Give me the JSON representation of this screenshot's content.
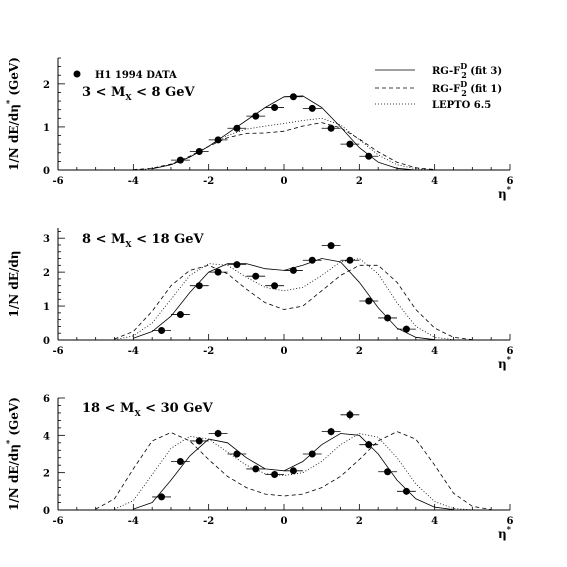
{
  "legend": {
    "data_label": "H1 1994 DATA",
    "fit3": {
      "main": "RG-F",
      "sub": "2",
      "sup": "D",
      "rest": " (fit 3)"
    },
    "fit1": {
      "main": "RG-F",
      "sub": "2",
      "sup": "D",
      "rest": " (fit 1)"
    },
    "lepto": "LEPTO 6.5"
  },
  "chart_data": [
    {
      "type": "scatter",
      "panel_label": {
        "pre": "3 < M",
        "sub": "X",
        "post": " < 8 GeV"
      },
      "ylabel": {
        "pre": "1/N dE/dη",
        "sup": "*",
        "post": "  (GeV)"
      },
      "xlabel": {
        "base": "η",
        "sup": "*"
      },
      "xlim": [
        -6,
        6
      ],
      "ylim": [
        0,
        2.6
      ],
      "xticks": [
        -6,
        -4,
        -2,
        0,
        2,
        4,
        6
      ],
      "yticks": [
        0,
        1,
        2
      ],
      "points": {
        "x": [
          -2.75,
          -2.25,
          -1.75,
          -1.25,
          -0.75,
          -0.25,
          0.25,
          0.75,
          1.25,
          1.75,
          2.25
        ],
        "y": [
          0.23,
          0.43,
          0.7,
          0.97,
          1.25,
          1.45,
          1.7,
          1.43,
          0.97,
          0.6,
          0.32
        ],
        "yerr": [
          0.04,
          0.04,
          0.05,
          0.06,
          0.06,
          0.07,
          0.07,
          0.07,
          0.06,
          0.05,
          0.04
        ]
      },
      "series": [
        {
          "style": "solid",
          "x": [
            -3.5,
            -3.0,
            -2.5,
            -2.0,
            -1.5,
            -1.0,
            -0.5,
            0.0,
            0.5,
            1.0,
            1.5,
            2.0,
            2.5,
            3.0,
            3.5
          ],
          "y": [
            0.03,
            0.12,
            0.3,
            0.55,
            0.85,
            1.15,
            1.45,
            1.7,
            1.72,
            1.45,
            1.0,
            0.52,
            0.18,
            0.04,
            0.0
          ]
        },
        {
          "style": "dashed",
          "x": [
            -4.0,
            -3.5,
            -3.0,
            -2.5,
            -2.0,
            -1.5,
            -1.0,
            -0.5,
            0.0,
            0.5,
            1.0,
            1.5,
            2.0,
            2.5,
            3.0,
            3.5,
            4.0
          ],
          "y": [
            0.01,
            0.04,
            0.14,
            0.32,
            0.55,
            0.75,
            0.85,
            0.86,
            0.9,
            1.02,
            1.1,
            0.98,
            0.72,
            0.42,
            0.18,
            0.05,
            0.01
          ]
        },
        {
          "style": "dotted",
          "x": [
            -4.0,
            -3.5,
            -3.0,
            -2.5,
            -2.0,
            -1.5,
            -1.0,
            -0.5,
            0.0,
            0.5,
            1.0,
            1.5,
            2.0,
            2.5,
            3.0,
            3.5,
            4.0
          ],
          "y": [
            0.0,
            0.03,
            0.12,
            0.3,
            0.55,
            0.8,
            0.95,
            1.02,
            1.08,
            1.15,
            1.2,
            1.05,
            0.7,
            0.35,
            0.12,
            0.03,
            0.0
          ]
        }
      ]
    },
    {
      "type": "scatter",
      "panel_label": {
        "pre": "8  < M",
        "sub": "X",
        "post": " < 18 GeV"
      },
      "ylabel": {
        "pre": "1/N dE/dη",
        "sup": "",
        "post": ""
      },
      "xlabel": {
        "base": "η",
        "sup": "*"
      },
      "xlim": [
        -6,
        6
      ],
      "ylim": [
        0,
        3.3
      ],
      "xticks": [
        -6,
        -4,
        -2,
        0,
        2,
        4,
        6
      ],
      "yticks": [
        0,
        1,
        2,
        3
      ],
      "points": {
        "x": [
          -3.25,
          -2.75,
          -2.25,
          -1.75,
          -1.25,
          -0.75,
          -0.25,
          0.25,
          0.75,
          1.25,
          1.75,
          2.25,
          2.75,
          3.25
        ],
        "y": [
          0.28,
          0.75,
          1.6,
          2.0,
          2.22,
          1.88,
          1.6,
          2.05,
          2.35,
          2.78,
          2.35,
          1.15,
          0.65,
          0.32
        ],
        "yerr": [
          0.05,
          0.06,
          0.08,
          0.08,
          0.08,
          0.08,
          0.08,
          0.08,
          0.09,
          0.1,
          0.09,
          0.07,
          0.06,
          0.05
        ]
      },
      "series": [
        {
          "style": "solid",
          "x": [
            -4.0,
            -3.5,
            -3.0,
            -2.5,
            -2.0,
            -1.5,
            -1.0,
            -0.5,
            0.0,
            0.5,
            1.0,
            1.5,
            2.0,
            2.5,
            3.0,
            3.5,
            4.0
          ],
          "y": [
            0.05,
            0.25,
            0.7,
            1.4,
            2.0,
            2.25,
            2.25,
            2.1,
            2.05,
            2.2,
            2.4,
            2.3,
            1.7,
            0.95,
            0.35,
            0.08,
            0.01
          ]
        },
        {
          "style": "dashed",
          "x": [
            -4.5,
            -4.0,
            -3.5,
            -3.0,
            -2.5,
            -2.0,
            -1.5,
            -1.0,
            -0.5,
            0.0,
            0.5,
            1.0,
            1.5,
            2.0,
            2.5,
            3.0,
            3.5,
            4.0,
            4.5,
            5.0
          ],
          "y": [
            0.03,
            0.25,
            0.85,
            1.6,
            2.05,
            2.2,
            1.95,
            1.5,
            1.1,
            0.9,
            1.0,
            1.45,
            1.9,
            2.2,
            2.2,
            1.7,
            0.9,
            0.35,
            0.08,
            0.01
          ]
        },
        {
          "style": "dotted",
          "x": [
            -4.5,
            -4.0,
            -3.5,
            -3.0,
            -2.5,
            -2.0,
            -1.5,
            -1.0,
            -0.5,
            0.0,
            0.5,
            1.0,
            1.5,
            2.0,
            2.5,
            3.0,
            3.5,
            4.0,
            4.5
          ],
          "y": [
            0.01,
            0.12,
            0.5,
            1.2,
            1.9,
            2.25,
            2.2,
            1.85,
            1.55,
            1.45,
            1.55,
            1.9,
            2.3,
            2.4,
            1.95,
            1.1,
            0.4,
            0.08,
            0.01
          ]
        }
      ]
    },
    {
      "type": "scatter",
      "panel_label": {
        "pre": "18  < M",
        "sub": "X",
        "post": " < 30 GeV"
      },
      "ylabel": {
        "pre": "1/N dE/dη",
        "sup": "*",
        "post": "  (GeV)"
      },
      "xlabel": {
        "base": "η",
        "sup": "*"
      },
      "xlim": [
        -6,
        6
      ],
      "ylim": [
        0,
        6
      ],
      "xticks": [
        -6,
        -4,
        -2,
        0,
        2,
        4,
        6
      ],
      "yticks": [
        0,
        2,
        4,
        6
      ],
      "points": {
        "x": [
          -3.25,
          -2.75,
          -2.25,
          -1.75,
          -1.25,
          -0.75,
          -0.25,
          0.25,
          0.75,
          1.25,
          1.75,
          2.25,
          2.75,
          3.25
        ],
        "y": [
          0.7,
          2.6,
          3.7,
          4.1,
          3.0,
          2.2,
          1.9,
          2.1,
          3.0,
          4.2,
          5.1,
          3.5,
          2.05,
          1.0
        ],
        "yerr": [
          0.1,
          0.15,
          0.2,
          0.2,
          0.15,
          0.12,
          0.12,
          0.12,
          0.15,
          0.2,
          0.25,
          0.2,
          0.15,
          0.1
        ]
      },
      "series": [
        {
          "style": "solid",
          "x": [
            -4.0,
            -3.5,
            -3.0,
            -2.5,
            -2.0,
            -1.5,
            -1.0,
            -0.5,
            0.0,
            0.5,
            1.0,
            1.5,
            2.0,
            2.5,
            3.0,
            3.5,
            4.0,
            4.5
          ],
          "y": [
            0.05,
            0.4,
            1.6,
            2.9,
            3.8,
            3.6,
            2.8,
            2.2,
            2.1,
            2.6,
            3.5,
            4.1,
            4.0,
            3.0,
            1.6,
            0.6,
            0.15,
            0.02
          ]
        },
        {
          "style": "dashed",
          "x": [
            -5.0,
            -4.5,
            -4.0,
            -3.5,
            -3.0,
            -2.5,
            -2.0,
            -1.5,
            -1.0,
            -0.5,
            0.0,
            0.5,
            1.0,
            1.5,
            2.0,
            2.5,
            3.0,
            3.5,
            4.0,
            4.5,
            5.0,
            5.5
          ],
          "y": [
            0.05,
            0.6,
            2.2,
            3.7,
            4.15,
            3.7,
            2.7,
            1.8,
            1.2,
            0.85,
            0.75,
            0.85,
            1.2,
            1.8,
            2.7,
            3.7,
            4.2,
            3.8,
            2.4,
            0.9,
            0.2,
            0.02
          ]
        },
        {
          "style": "dotted",
          "x": [
            -4.5,
            -4.0,
            -3.5,
            -3.0,
            -2.5,
            -2.0,
            -1.5,
            -1.0,
            -0.5,
            0.0,
            0.5,
            1.0,
            1.5,
            2.0,
            2.5,
            3.0,
            3.5,
            4.0,
            4.5,
            5.0
          ],
          "y": [
            0.05,
            0.5,
            1.9,
            3.3,
            3.95,
            3.8,
            3.1,
            2.4,
            1.95,
            1.85,
            2.0,
            2.6,
            3.5,
            4.1,
            3.9,
            2.8,
            1.4,
            0.45,
            0.08,
            0.01
          ]
        }
      ]
    }
  ]
}
